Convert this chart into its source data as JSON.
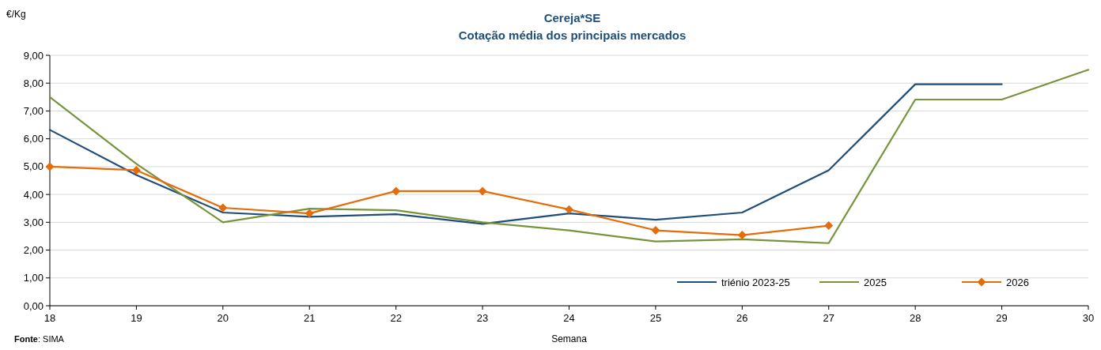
{
  "chart_data": {
    "type": "line",
    "title": "Cereja*SE",
    "subtitle": "Cotação média dos principais mercados",
    "xlabel": "Semana",
    "ylabel": "€/Kg",
    "xlim": [
      18,
      30
    ],
    "xticks": [
      18,
      19,
      20,
      21,
      22,
      23,
      24,
      25,
      26,
      27,
      28,
      29,
      30
    ],
    "ylim": [
      0,
      9
    ],
    "yticks": [
      {
        "value": 0,
        "label": "0,00"
      },
      {
        "value": 1,
        "label": "1,00"
      },
      {
        "value": 2,
        "label": "2,00"
      },
      {
        "value": 3,
        "label": "3,00"
      },
      {
        "value": 4,
        "label": "4,00"
      },
      {
        "value": 5,
        "label": "5,00"
      },
      {
        "value": 6,
        "label": "6,00"
      },
      {
        "value": 7,
        "label": "7,00"
      },
      {
        "value": 8,
        "label": "8,00"
      },
      {
        "value": 9,
        "label": "9,00"
      }
    ],
    "grid": "y",
    "legend": "bottom right",
    "series": [
      {
        "name": "triénio 2023-25",
        "color": "#1f4e79",
        "marker": "none",
        "x": [
          18,
          19,
          20,
          21,
          22,
          23,
          24,
          25,
          26,
          27,
          28,
          29
        ],
        "values": [
          6.32,
          4.7,
          3.35,
          3.2,
          3.29,
          2.94,
          3.32,
          3.09,
          3.35,
          4.87,
          7.96,
          7.96
        ]
      },
      {
        "name": "2025",
        "color": "#77933c",
        "marker": "none",
        "x": [
          18,
          19,
          20,
          21,
          22,
          23,
          24,
          25,
          26,
          27,
          28,
          29,
          30
        ],
        "values": [
          7.5,
          5.1,
          3.0,
          3.49,
          3.43,
          3.0,
          2.71,
          2.31,
          2.39,
          2.25,
          7.41,
          7.41,
          8.48
        ]
      },
      {
        "name": "2026",
        "color": "#e46c0a",
        "marker": "diamond",
        "x": [
          18,
          19,
          20,
          21,
          22,
          23,
          24,
          25,
          26,
          27
        ],
        "values": [
          5.0,
          4.87,
          3.52,
          3.32,
          4.12,
          4.12,
          3.46,
          2.71,
          2.54,
          2.88
        ]
      }
    ],
    "annotations": [
      "Fonte: SIMA"
    ]
  }
}
